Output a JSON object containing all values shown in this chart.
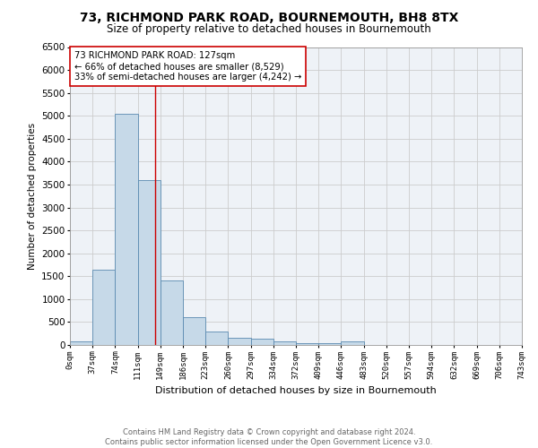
{
  "title": "73, RICHMOND PARK ROAD, BOURNEMOUTH, BH8 8TX",
  "subtitle": "Size of property relative to detached houses in Bournemouth",
  "xlabel": "Distribution of detached houses by size in Bournemouth",
  "ylabel": "Number of detached properties",
  "footer_line1": "Contains HM Land Registry data © Crown copyright and database right 2024.",
  "footer_line2": "Contains public sector information licensed under the Open Government Licence v3.0.",
  "bin_labels": [
    "0sqm",
    "37sqm",
    "74sqm",
    "111sqm",
    "149sqm",
    "186sqm",
    "223sqm",
    "260sqm",
    "297sqm",
    "334sqm",
    "372sqm",
    "409sqm",
    "446sqm",
    "483sqm",
    "520sqm",
    "557sqm",
    "594sqm",
    "632sqm",
    "669sqm",
    "706sqm",
    "743sqm"
  ],
  "bar_values": [
    75,
    1650,
    5050,
    3600,
    1400,
    600,
    290,
    155,
    130,
    75,
    45,
    30,
    70,
    0,
    0,
    0,
    0,
    0,
    0,
    0
  ],
  "bar_color": "#c6d9e8",
  "bar_edge_color": "#5a8ab0",
  "vline_x": 3.75,
  "vline_color": "#cc0000",
  "annotation_text": "73 RICHMOND PARK ROAD: 127sqm\n← 66% of detached houses are smaller (8,529)\n33% of semi-detached houses are larger (4,242) →",
  "annotation_box_color": "#ffffff",
  "annotation_box_edge": "#cc0000",
  "ylim": [
    0,
    6500
  ],
  "yticks": [
    0,
    500,
    1000,
    1500,
    2000,
    2500,
    3000,
    3500,
    4000,
    4500,
    5000,
    5500,
    6000,
    6500
  ],
  "grid_color": "#cccccc",
  "bg_color": "#eef2f7",
  "property_sqm": 127,
  "num_bins": 20
}
